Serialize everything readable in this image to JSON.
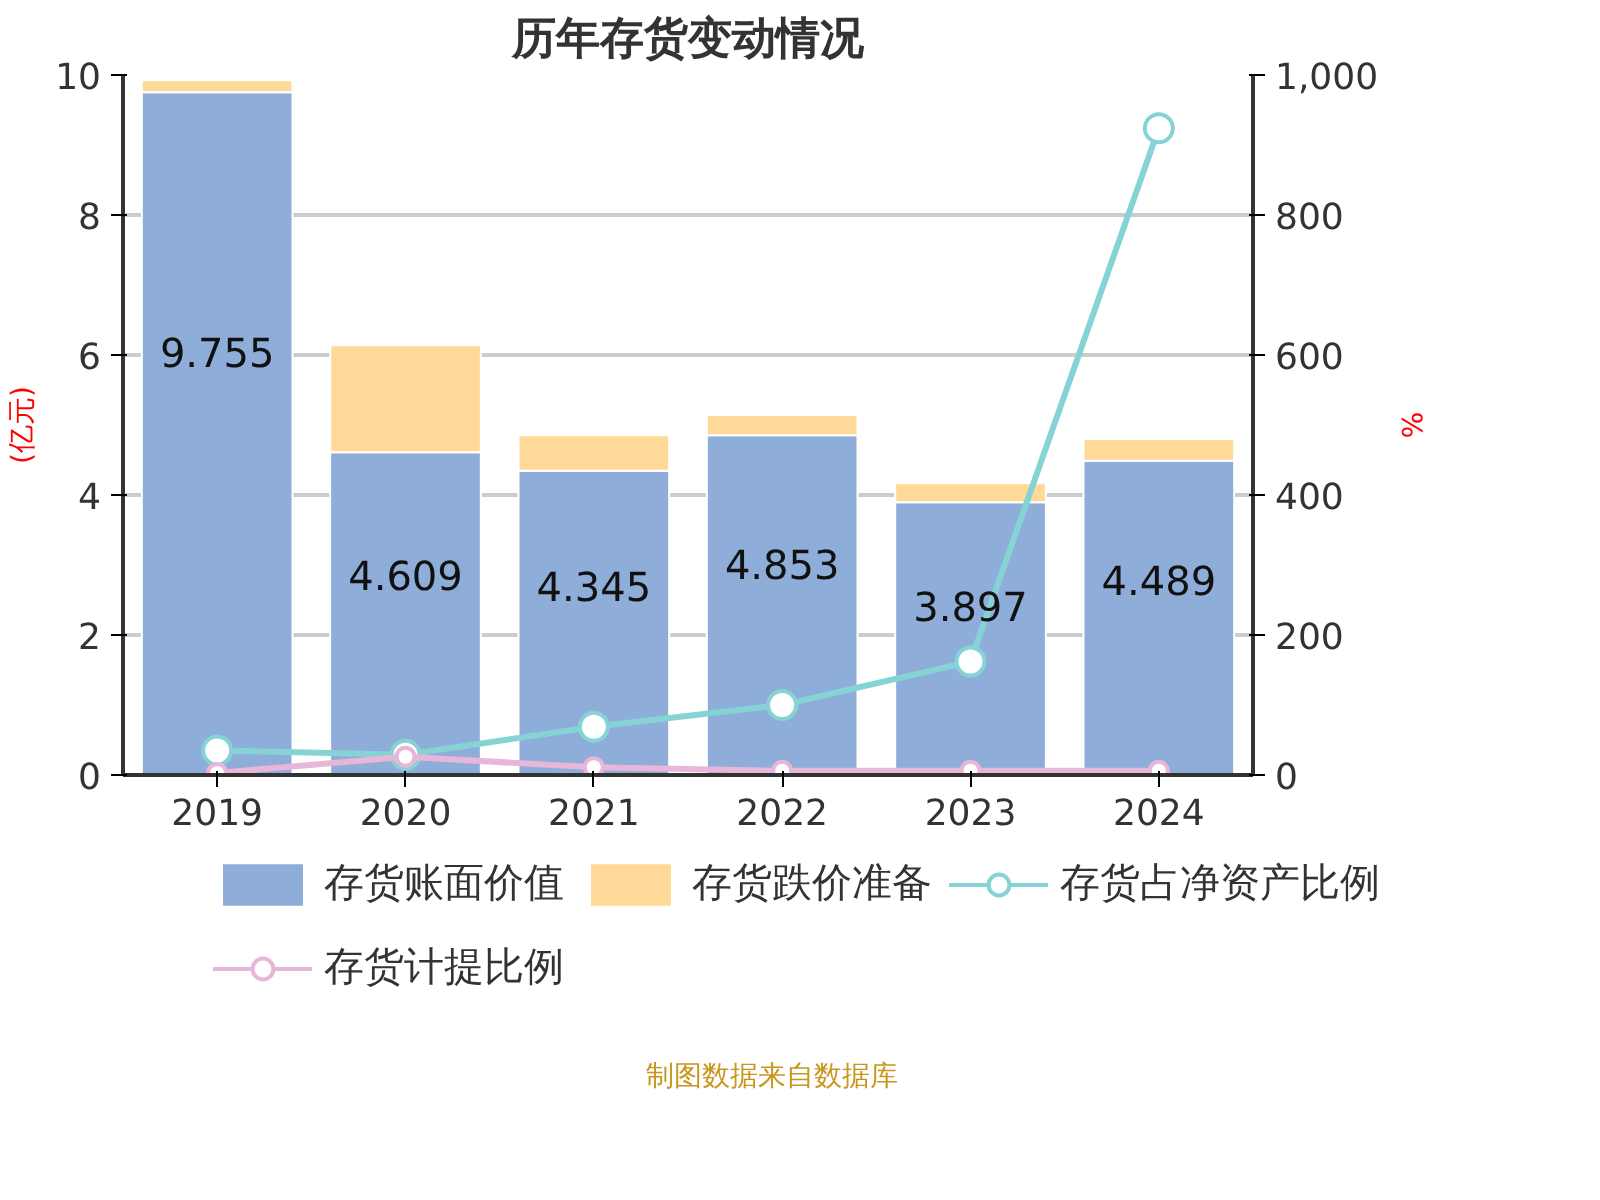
{
  "chart_data": {
    "type": "bar",
    "title": "历年存货变动情况",
    "stacked": true,
    "categories": [
      "2019",
      "2020",
      "2021",
      "2022",
      "2023",
      "2024"
    ],
    "series": [
      {
        "name": "存货账面价值",
        "color": "#8eadd9",
        "values": [
          9.755,
          4.609,
          4.345,
          4.853,
          3.897,
          4.489
        ],
        "value_labels": [
          "9.755",
          "4.609",
          "4.345",
          "4.853",
          "3.897",
          "4.489"
        ]
      },
      {
        "name": "存货跌价准备",
        "color": "#fed998",
        "values": [
          0.17,
          1.53,
          0.51,
          0.29,
          0.27,
          0.31
        ]
      },
      {
        "name": "存货占净资产比例",
        "type": "line",
        "axis": "y2",
        "color": "#86d3d6",
        "marker": "circle",
        "values": [
          35,
          29,
          69,
          100,
          162,
          924
        ]
      },
      {
        "name": "存货计提比例",
        "type": "line",
        "axis": "y2",
        "color": "#e8b6d9",
        "marker": "circle",
        "values": [
          3,
          26,
          11,
          6,
          6,
          6
        ]
      }
    ],
    "ylabel": "(亿元)",
    "y2label": "%",
    "ylim": [
      0,
      10
    ],
    "yticks": [
      0,
      2,
      4,
      6,
      8,
      10
    ],
    "y2lim": [
      0,
      1000
    ],
    "y2ticks": [
      0,
      200,
      400,
      600,
      800,
      {
        "value": 1000,
        "label": "1,000"
      }
    ],
    "grid": "y",
    "legend": "bottom",
    "annotations": [
      "制图数据来自数据库"
    ]
  }
}
